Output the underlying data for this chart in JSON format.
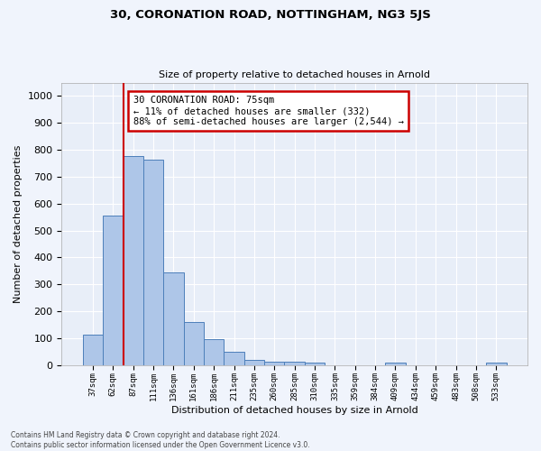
{
  "title": "30, CORONATION ROAD, NOTTINGHAM, NG3 5JS",
  "subtitle": "Size of property relative to detached houses in Arnold",
  "xlabel": "Distribution of detached houses by size in Arnold",
  "ylabel": "Number of detached properties",
  "categories": [
    "37sqm",
    "62sqm",
    "87sqm",
    "111sqm",
    "136sqm",
    "161sqm",
    "186sqm",
    "211sqm",
    "235sqm",
    "260sqm",
    "285sqm",
    "310sqm",
    "335sqm",
    "359sqm",
    "384sqm",
    "409sqm",
    "434sqm",
    "459sqm",
    "483sqm",
    "508sqm",
    "533sqm"
  ],
  "values": [
    113,
    557,
    778,
    762,
    345,
    158,
    97,
    50,
    20,
    13,
    12,
    8,
    0,
    0,
    0,
    9,
    0,
    0,
    0,
    0,
    9
  ],
  "bar_color": "#aec6e8",
  "bar_edge_color": "#4d7fba",
  "bg_color": "#e8eef8",
  "grid_color": "#ffffff",
  "annotation_text": "30 CORONATION ROAD: 75sqm\n← 11% of detached houses are smaller (332)\n88% of semi-detached houses are larger (2,544) →",
  "annotation_box_color": "#ffffff",
  "annotation_box_edge": "#cc0000",
  "footnote": "Contains HM Land Registry data © Crown copyright and database right 2024.\nContains public sector information licensed under the Open Government Licence v3.0.",
  "ylim_max": 1050,
  "red_line_x": 1.5,
  "title_fontsize": 9.5,
  "subtitle_fontsize": 8,
  "ylabel_fontsize": 8,
  "xlabel_fontsize": 8
}
